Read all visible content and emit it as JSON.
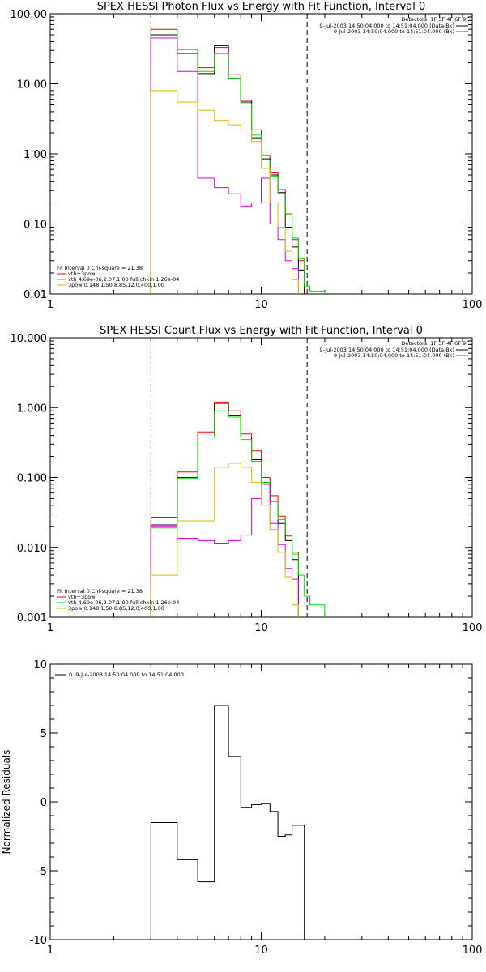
{
  "chart_data": [
    {
      "type": "line",
      "title": "SPEX HESSI Photon Flux vs Energy with Fit Function, Interval 0",
      "xscale": "log",
      "yscale": "log",
      "xlim": [
        1,
        100
      ],
      "ylim": [
        0.01,
        100
      ],
      "xticks": [
        1,
        10,
        100
      ],
      "xtick_labels": [
        "1",
        "10",
        "100"
      ],
      "yticks": [
        0.01,
        0.1,
        1,
        10,
        100
      ],
      "ytick_labels": [
        "0.01",
        "0.10",
        "1.00",
        "10.00",
        "100.00"
      ],
      "edges": [
        3,
        4,
        5,
        6,
        7,
        8,
        9,
        10,
        11,
        12,
        13,
        14,
        15,
        16,
        17,
        20
      ],
      "vlines": [
        {
          "x": 3,
          "style": "dotted",
          "color": "#000000"
        },
        {
          "x": 16.5,
          "style": "dashed",
          "color": "#000000"
        }
      ],
      "series": [
        {
          "color": "#ff0000",
          "values": [
            60,
            31,
            17,
            33,
            13.5,
            5.8,
            2.2,
            0.95,
            0.55,
            0.31,
            0.135,
            0.06,
            0.03,
            null,
            null
          ]
        },
        {
          "color": "#000000",
          "values": [
            50,
            27,
            14,
            35,
            12,
            5.5,
            1.7,
            0.85,
            0.5,
            0.28,
            0.09,
            0.047,
            0.022,
            null,
            null
          ]
        },
        {
          "color": "#00dd00",
          "values": [
            55,
            27,
            15,
            27,
            12,
            5.2,
            1.85,
            0.82,
            0.48,
            0.27,
            0.14,
            0.063,
            0.032,
            0.013,
            0.011
          ]
        },
        {
          "color": "#dd00dd",
          "values": [
            45,
            15,
            0.45,
            0.33,
            0.27,
            0.18,
            0.2,
            0.45,
            0.1,
            0.06,
            0.03,
            0.023,
            null,
            null,
            null
          ]
        },
        {
          "color": "#ddbb00",
          "values": [
            8,
            5.5,
            4.2,
            3.0,
            2.6,
            2.2,
            1.5,
            0.62,
            0.2,
            0.09,
            0.041,
            0.016,
            null,
            null,
            null
          ]
        }
      ],
      "detectors": "Detectors: 1F 3F 4F 6F 9F",
      "legend_top": [
        {
          "label": "9-Jul-2003 14:50:04.000 to 14:51:04.000 (Data-Bk)",
          "color": "#000000"
        },
        {
          "label": "9-Jul-2003 14:50:04.000 to 14:51:04.000 (Bk)",
          "color": "#dd00dd"
        }
      ],
      "legend_bottom_header": "Fit Interval 0   Chi-square = 21.38",
      "legend_bottom": [
        {
          "label": "vth+3pow",
          "color": "#ff0000"
        },
        {
          "label": "vth 4.69e-06,2.07,1.00  full chkin 1.26e-04",
          "color": "#00dd00"
        },
        {
          "label": "3pow 0.148,1.50,8.85,12.0,400,1.00",
          "color": "#ddbb00"
        }
      ]
    },
    {
      "type": "line",
      "title": "SPEX HESSI Count Flux vs Energy with Fit Function, Interval 0",
      "xscale": "log",
      "yscale": "log",
      "xlim": [
        1,
        100
      ],
      "ylim": [
        0.001,
        10
      ],
      "xticks": [
        1,
        10,
        100
      ],
      "xtick_labels": [
        "1",
        "10",
        "100"
      ],
      "yticks": [
        0.001,
        0.01,
        0.1,
        1,
        10
      ],
      "ytick_labels": [
        "0.001",
        "0.010",
        "0.100",
        "1.000",
        "10.000"
      ],
      "edges": [
        3,
        4,
        5,
        6,
        7,
        8,
        9,
        10,
        11,
        12,
        13,
        14,
        15,
        16,
        17,
        20
      ],
      "vlines": [
        {
          "x": 3,
          "style": "dotted",
          "color": "#000000"
        },
        {
          "x": 16.5,
          "style": "dashed",
          "color": "#000000"
        }
      ],
      "series": [
        {
          "color": "#ff0000",
          "values": [
            0.027,
            0.12,
            0.45,
            1.2,
            0.9,
            0.42,
            0.24,
            0.1,
            0.055,
            0.028,
            0.0145,
            0.0085,
            null,
            null,
            null
          ]
        },
        {
          "color": "#000000",
          "values": [
            0.021,
            0.1,
            0.38,
            1.15,
            0.78,
            0.38,
            0.18,
            0.085,
            0.046,
            0.022,
            0.0125,
            0.0067,
            null,
            null,
            null
          ]
        },
        {
          "color": "#00dd00",
          "values": [
            0.019,
            0.098,
            0.38,
            0.9,
            0.73,
            0.35,
            0.17,
            0.085,
            0.045,
            0.025,
            0.015,
            0.008,
            0.004,
            0.002,
            0.0015
          ]
        },
        {
          "color": "#dd00dd",
          "values": [
            0.02,
            0.0135,
            0.0125,
            0.0115,
            0.0125,
            0.015,
            0.05,
            0.08,
            0.022,
            0.011,
            0.005,
            0.0035,
            null,
            null,
            null
          ]
        },
        {
          "color": "#ddbb00",
          "values": [
            0.004,
            0.024,
            0.024,
            0.14,
            0.16,
            0.14,
            0.085,
            0.04,
            0.018,
            0.0085,
            0.0038,
            0.0015,
            null,
            null,
            null
          ]
        }
      ],
      "detectors": "Detectors: 1F 3F 4F 6F 9F",
      "legend_top": [
        {
          "label": "9-Jul-2003 14:50:04.000 to 14:51:04.000 (Data-Bk)",
          "color": "#000000"
        },
        {
          "label": "9-Jul-2003 14:50:04.000 to 14:51:04.000 (Bk)",
          "color": "#dd00dd"
        }
      ],
      "legend_bottom_header": "Fit Interval 0   Chi-square = 21.38",
      "legend_bottom": [
        {
          "label": "vth+3pow",
          "color": "#ff0000"
        },
        {
          "label": "vth 4.69e-06,2.07,1.00  full chkin 1.26e-04",
          "color": "#00dd00"
        },
        {
          "label": "3pow 0.148,1.50,8.85,12.0,400,1.00",
          "color": "#ddbb00"
        }
      ]
    },
    {
      "type": "line",
      "title": "",
      "xscale": "log",
      "yscale": "linear",
      "xlim": [
        1,
        100
      ],
      "ylim": [
        -10,
        10
      ],
      "xticks": [
        1,
        10,
        100
      ],
      "xtick_labels": [
        "1",
        "10",
        "100"
      ],
      "yticks": [
        -10,
        -5,
        0,
        5,
        10
      ],
      "ytick_labels": [
        "-10",
        "-5",
        "0",
        "5",
        "10"
      ],
      "ylabel": "Normalized Residuals",
      "edges": [
        3,
        4,
        5,
        6,
        7,
        8,
        9,
        10,
        11,
        12,
        13,
        14,
        15,
        16,
        17
      ],
      "series": [
        {
          "color": "#000000",
          "values": [
            -1.5,
            -4.2,
            -5.8,
            7.0,
            3.3,
            -0.4,
            -0.2,
            -0.1,
            -0.7,
            -2.5,
            -2.4,
            -1.7,
            -1.7,
            null
          ]
        }
      ],
      "legend_top": [
        {
          "label": "0. 9-Jul-2003 14:50:04.000 to 14:51:04.000",
          "color": "#000000"
        }
      ]
    }
  ]
}
